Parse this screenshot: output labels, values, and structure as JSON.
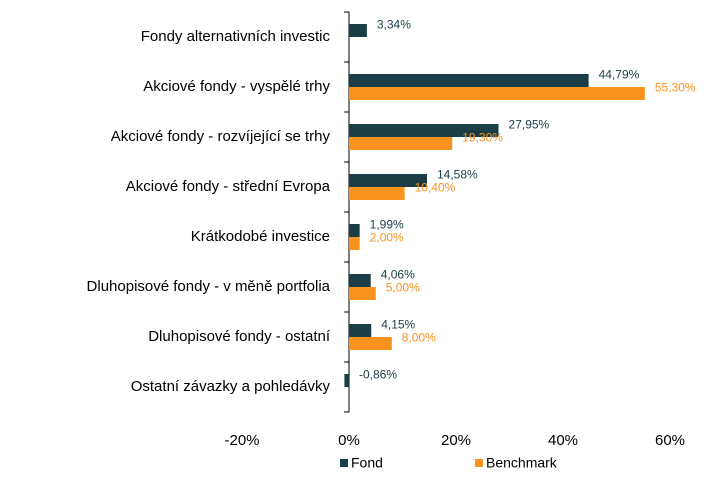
{
  "chart_data": {
    "type": "bar",
    "orientation": "horizontal",
    "categories": [
      "Fondy alternativních investic",
      "Akciové fondy - vyspělé trhy",
      "Akciové fondy - rozvíjející se trhy",
      "Akciové fondy - střední Evropa",
      "Krátkodobé investice",
      "Dluhopisové fondy - v měně portfolia",
      "Dluhopisové fondy - ostatní",
      "Ostatní závazky a pohledávky"
    ],
    "series": [
      {
        "name": "Fond",
        "color": "#1b3d45",
        "values": [
          3.34,
          44.79,
          27.95,
          14.58,
          1.99,
          4.06,
          4.15,
          -0.86
        ],
        "value_labels": [
          "3,34%",
          "44,79%",
          "27,95%",
          "14,58%",
          "1,99%",
          "4,06%",
          "4,15%",
          "-0,86%"
        ]
      },
      {
        "name": "Benchmark",
        "color": "#f7931e",
        "values": [
          null,
          55.3,
          19.3,
          10.4,
          2.0,
          5.0,
          8.0,
          null
        ],
        "value_labels": [
          null,
          "55,30%",
          "19,30%",
          "10,40%",
          "2,00%",
          "5,00%",
          "8,00%",
          null
        ]
      }
    ],
    "xlim": [
      -20,
      60
    ],
    "xticks": [
      {
        "value": -20,
        "label": "-20%"
      },
      {
        "value": 0,
        "label": "0%"
      },
      {
        "value": 20,
        "label": "20%"
      },
      {
        "value": 40,
        "label": "40%"
      },
      {
        "value": 60,
        "label": "60%"
      }
    ],
    "legend": "bottom"
  }
}
